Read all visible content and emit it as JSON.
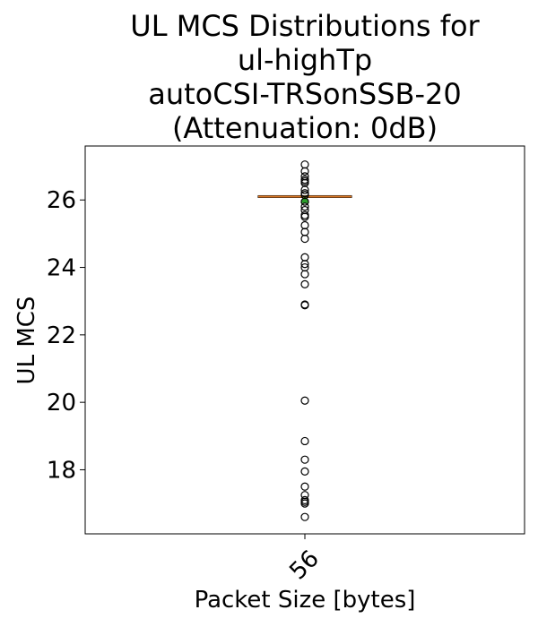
{
  "chart_data": {
    "type": "box",
    "title_lines": [
      "UL MCS Distributions for",
      "ul-highTp",
      "autoCSI-TRSonSSB-20",
      "(Attenuation: 0dB)"
    ],
    "xlabel": "Packet Size [bytes]",
    "ylabel": "UL MCS",
    "categories": [
      "56"
    ],
    "ylim": [
      16.1,
      27.6
    ],
    "yticks": [
      18,
      20,
      22,
      24,
      26
    ],
    "box": {
      "q1": 26.1,
      "median": 26.1,
      "q3": 26.1,
      "whisker_low": 26.1,
      "whisker_high": 26.1,
      "mean": 26.0
    },
    "outliers": [
      27.05,
      26.85,
      26.7,
      26.6,
      26.55,
      26.5,
      26.3,
      26.2,
      26.15,
      25.95,
      25.8,
      25.7,
      25.55,
      25.5,
      25.25,
      25.05,
      24.85,
      24.3,
      24.1,
      24.0,
      23.8,
      23.5,
      22.9,
      22.88,
      20.05,
      18.85,
      18.3,
      17.95,
      17.5,
      17.25,
      17.1,
      17.05,
      17.0,
      16.6
    ],
    "colors": {
      "median": "#e07b29",
      "mean": "#2ca02c",
      "box": "#000000",
      "outlier": "#000000"
    }
  }
}
